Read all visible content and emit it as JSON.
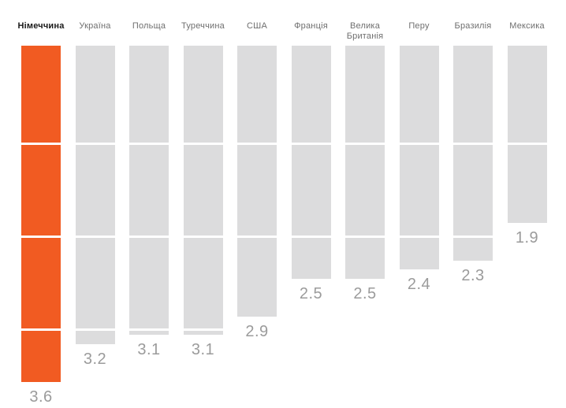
{
  "chart_data": {
    "type": "bar",
    "title": "",
    "orientation": "columns-growing-downward",
    "categories": [
      "Німеччина",
      "Україна",
      "Польща",
      "Туреччина",
      "США",
      "Франція",
      "Велика Британія",
      "Перу",
      "Бразилія",
      "Мексика"
    ],
    "values": [
      3.6,
      3.2,
      3.1,
      3.1,
      2.9,
      2.5,
      2.5,
      2.4,
      2.3,
      1.9
    ],
    "value_labels": [
      "3.6",
      "3.2",
      "3.1",
      "3.1",
      "2.9",
      "2.5",
      "2.5",
      "2.4",
      "2.3",
      "1.9"
    ],
    "highlighted_category": "Німеччина",
    "highlight_index": 0,
    "value_range": [
      0,
      3.6
    ],
    "gridline_units": [
      1,
      2,
      3
    ],
    "grid": "white tick lines crossing the bars at each whole unit",
    "legend": "none",
    "axis_labels": "none",
    "colors": {
      "highlight_bar": "#F15B22",
      "bar": "#DCDCDD",
      "header_highlight": "#1A1A1A",
      "header": "#6F6F6F",
      "value_label": "#9B9B9B",
      "background": "#FFFFFF",
      "gridline": "#FFFFFF"
    }
  }
}
